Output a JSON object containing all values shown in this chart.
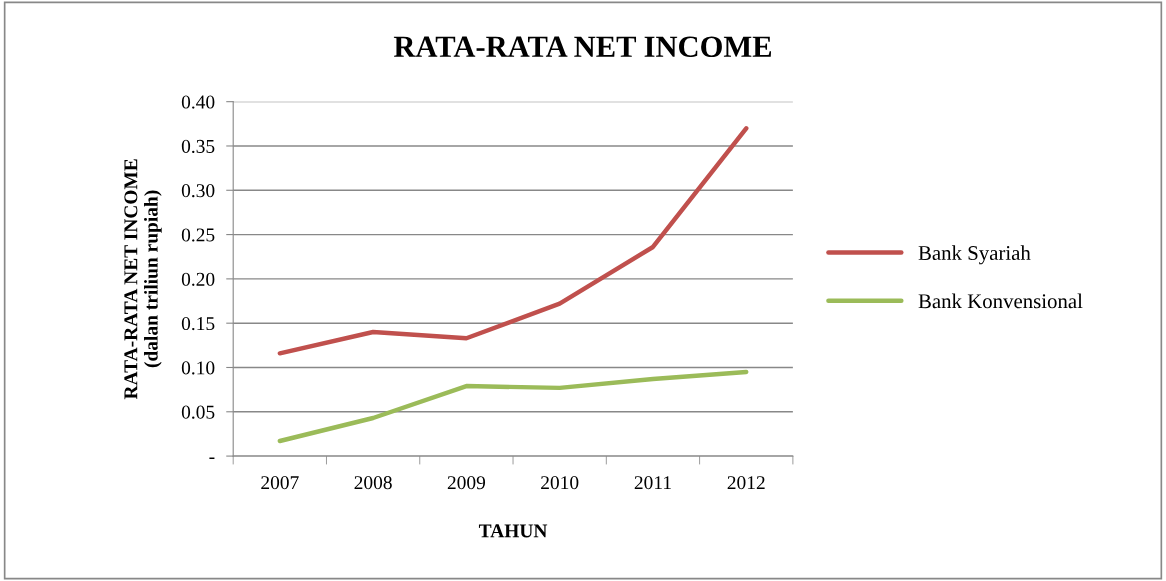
{
  "chart_data": {
    "type": "line",
    "title": "RATA-RATA NET INCOME",
    "xlabel": "TAHUN",
    "ylabel": "RATA-RATA NET INCOME\n(dalan triliun rupiah)",
    "categories": [
      "2007",
      "2008",
      "2009",
      "2010",
      "2011",
      "2012"
    ],
    "series": [
      {
        "name": "Bank Syariah",
        "color": "#c0504d",
        "values": [
          0.116,
          0.14,
          0.133,
          0.172,
          0.236,
          0.37
        ]
      },
      {
        "name": "Bank Konvensional",
        "color": "#9bbb59",
        "values": [
          0.017,
          0.043,
          0.079,
          0.077,
          0.087,
          0.095
        ]
      }
    ],
    "ylim": [
      0,
      0.4
    ],
    "yticks": [
      {
        "value": 0,
        "label": "-"
      },
      {
        "value": 0.05,
        "label": "0.05"
      },
      {
        "value": 0.1,
        "label": "0.10"
      },
      {
        "value": 0.15,
        "label": "0.15"
      },
      {
        "value": 0.2,
        "label": "0.20"
      },
      {
        "value": 0.25,
        "label": "0.25"
      },
      {
        "value": 0.3,
        "label": "0.30"
      },
      {
        "value": 0.35,
        "label": "0.35"
      },
      {
        "value": 0.4,
        "label": "0.40"
      }
    ],
    "grid": "y",
    "legend": "right",
    "marker": "none",
    "line_style": "solid"
  }
}
